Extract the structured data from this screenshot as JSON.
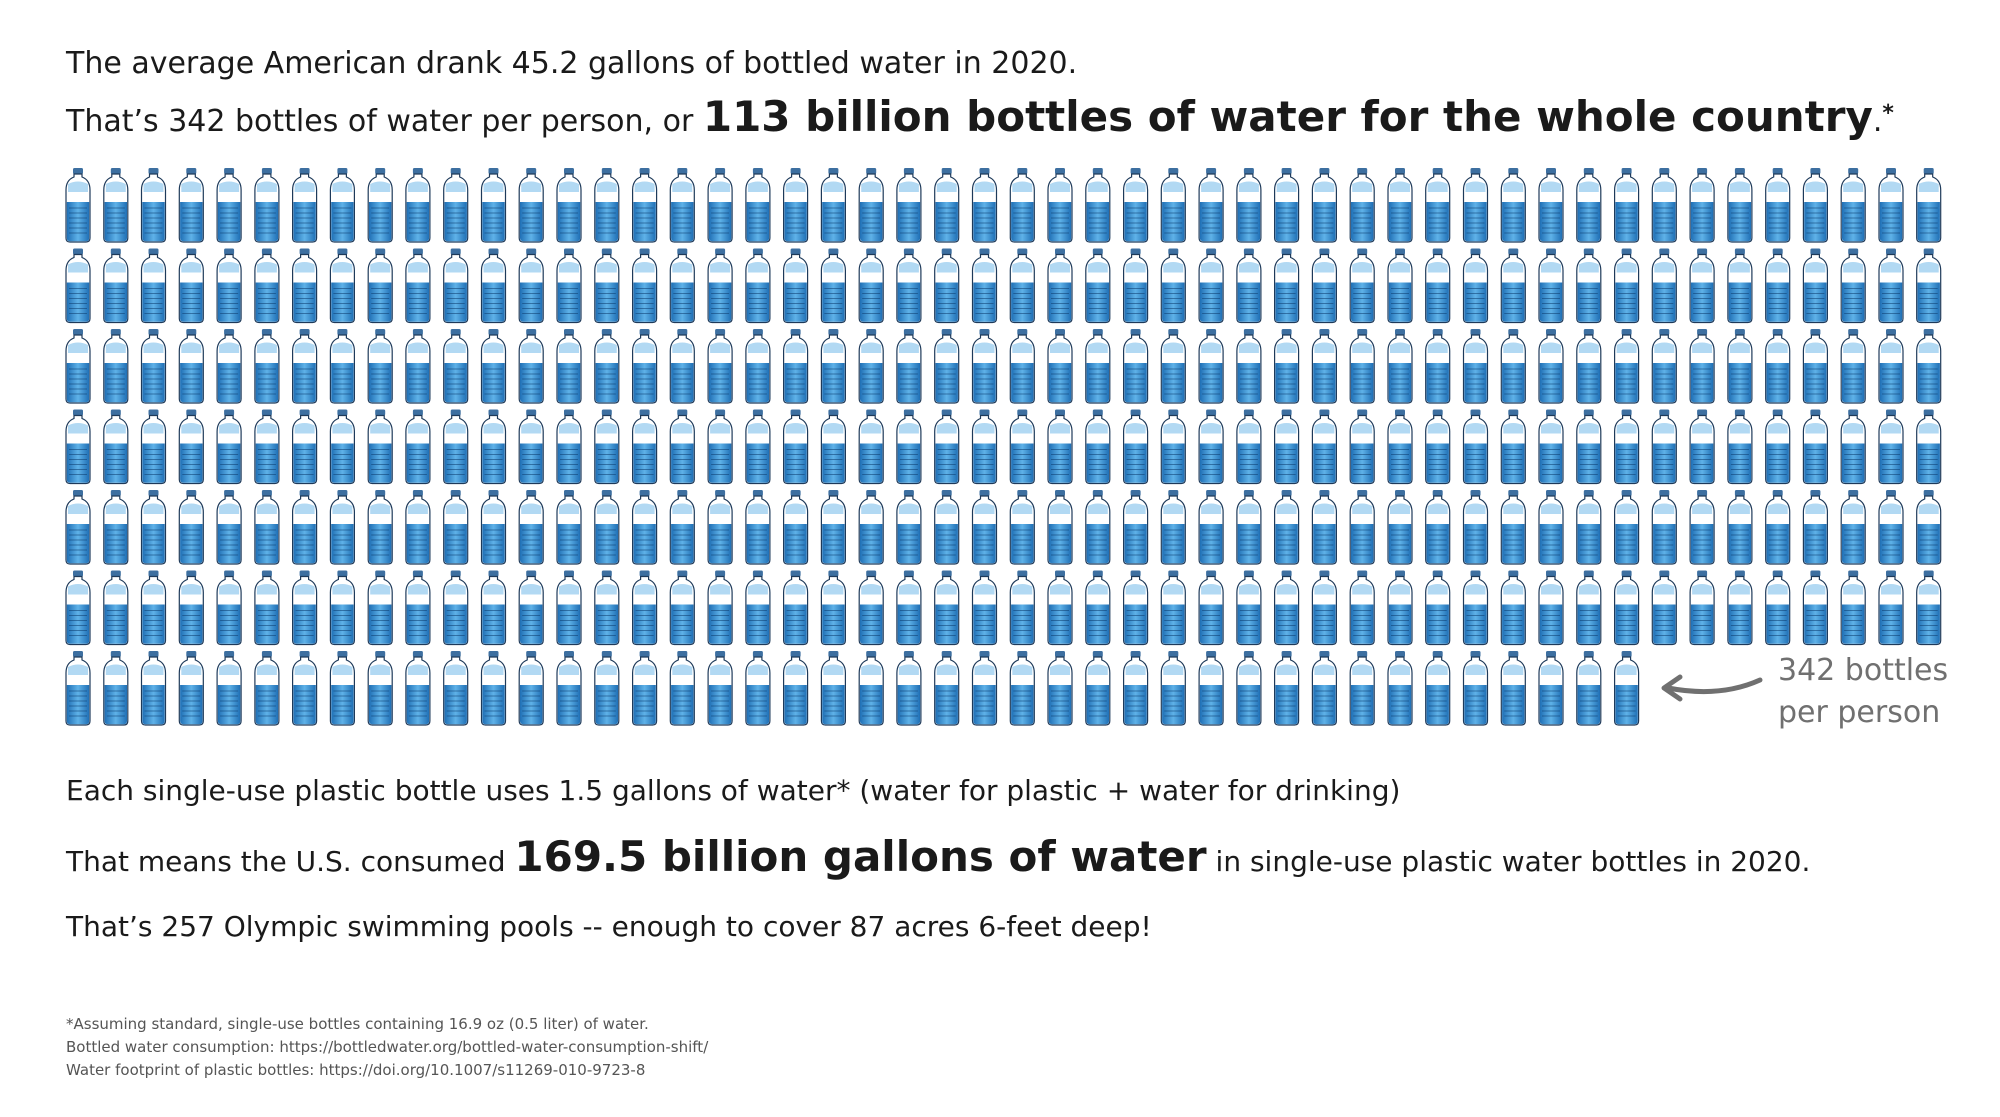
{
  "intro": {
    "line1": "The average American drank 45.2 gallons of bottled water in 2020.",
    "line2_pre": "That’s 342 bottles of water per person, or",
    "line2_big": "113 billion bottles of water for the whole country",
    "line2_post": ".",
    "line2_star": "*"
  },
  "chart_data": {
    "type": "pictograph",
    "unit": "bottle",
    "count": 342,
    "columns": 50,
    "callout": {
      "line1": "342 bottles",
      "line2": "per person"
    }
  },
  "facts": {
    "line1": "Each single-use plastic bottle uses 1.5 gallons of water* (water for plastic + water for drinking)",
    "line2_pre": "That means the U.S. consumed",
    "line2_big": "169.5 billion gallons of water",
    "line2_post": "in single-use plastic water bottles in 2020.",
    "line3": "That’s 257 Olympic swimming pools -- enough to cover 87 acres 6-feet deep!"
  },
  "footnotes": [
    "*Assuming standard, single-use bottles containing 16.9 oz (0.5 liter) of water.",
    "Bottled water consumption: https://bottledwater.org/bottled-water-consumption-shift/",
    "Water footprint of plastic bottles: https://doi.org/10.1007/s11269-010-9723-8"
  ],
  "colors": {
    "water_light": "#5fb2e8",
    "water_dark": "#1f6fb5",
    "cap": "#3d6fa0",
    "outline": "#1e3a5a",
    "arrow": "#707070"
  }
}
